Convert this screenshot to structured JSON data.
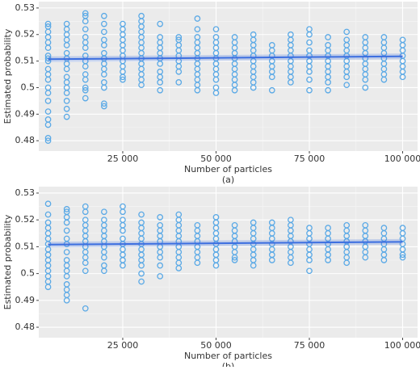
{
  "chart_data": [
    {
      "type": "scatter",
      "caption": "(a)",
      "x_label": "Number of particles",
      "y_label": "Estimated probability",
      "point_color": "#5aa9e6",
      "fit_color": "#3d6fe0",
      "grid": true,
      "background": "#ebebeb",
      "xlim": [
        2500,
        104000
      ],
      "ylim": [
        0.4761,
        0.5324
      ],
      "xticks": [
        {
          "value": 25000,
          "label": "25 000"
        },
        {
          "value": 50000,
          "label": "50 000"
        },
        {
          "value": 75000,
          "label": "75 000"
        },
        {
          "value": 100000,
          "label": "100 000"
        }
      ],
      "yticks": [
        0.48,
        0.49,
        0.5,
        0.51,
        0.52,
        0.53
      ],
      "fit": {
        "x": [
          5000,
          100000
        ],
        "values": [
          0.5107,
          0.5118
        ]
      },
      "groups": [
        {
          "x": 5000,
          "values": [
            0.524,
            0.523,
            0.521,
            0.519,
            0.517,
            0.515,
            0.512,
            0.511,
            0.51,
            0.507,
            0.505,
            0.503,
            0.5,
            0.498,
            0.495,
            0.491,
            0.488,
            0.486,
            0.481,
            0.48
          ]
        },
        {
          "x": 10000,
          "values": [
            0.524,
            0.522,
            0.52,
            0.518,
            0.516,
            0.513,
            0.511,
            0.509,
            0.507,
            0.504,
            0.502,
            0.5,
            0.498,
            0.495,
            0.492,
            0.489
          ]
        },
        {
          "x": 15000,
          "values": [
            0.528,
            0.527,
            0.525,
            0.522,
            0.519,
            0.517,
            0.515,
            0.512,
            0.51,
            0.508,
            0.505,
            0.503,
            0.5,
            0.499,
            0.496
          ]
        },
        {
          "x": 20000,
          "values": [
            0.527,
            0.524,
            0.521,
            0.518,
            0.516,
            0.513,
            0.511,
            0.509,
            0.507,
            0.505,
            0.502,
            0.5,
            0.494,
            0.493
          ]
        },
        {
          "x": 25000,
          "values": [
            0.524,
            0.522,
            0.52,
            0.518,
            0.516,
            0.514,
            0.512,
            0.51,
            0.508,
            0.506,
            0.504,
            0.503
          ]
        },
        {
          "x": 30000,
          "values": [
            0.527,
            0.525,
            0.523,
            0.521,
            0.519,
            0.517,
            0.515,
            0.513,
            0.511,
            0.509,
            0.507,
            0.505,
            0.503,
            0.501
          ]
        },
        {
          "x": 35000,
          "values": [
            0.524,
            0.519,
            0.517,
            0.515,
            0.513,
            0.511,
            0.509,
            0.506,
            0.504,
            0.502,
            0.499
          ]
        },
        {
          "x": 40000,
          "values": [
            0.519,
            0.518,
            0.516,
            0.514,
            0.512,
            0.51,
            0.508,
            0.506,
            0.502
          ]
        },
        {
          "x": 45000,
          "values": [
            0.526,
            0.522,
            0.519,
            0.517,
            0.515,
            0.513,
            0.511,
            0.509,
            0.507,
            0.505,
            0.503,
            0.501,
            0.499
          ]
        },
        {
          "x": 50000,
          "values": [
            0.522,
            0.519,
            0.517,
            0.515,
            0.513,
            0.511,
            0.509,
            0.507,
            0.505,
            0.503,
            0.5,
            0.498
          ]
        },
        {
          "x": 55000,
          "values": [
            0.519,
            0.517,
            0.515,
            0.513,
            0.511,
            0.509,
            0.507,
            0.505,
            0.503,
            0.501,
            0.499
          ]
        },
        {
          "x": 60000,
          "values": [
            0.52,
            0.518,
            0.516,
            0.514,
            0.512,
            0.51,
            0.508,
            0.506,
            0.504,
            0.502,
            0.5
          ]
        },
        {
          "x": 65000,
          "values": [
            0.516,
            0.514,
            0.512,
            0.51,
            0.508,
            0.506,
            0.504,
            0.499
          ]
        },
        {
          "x": 70000,
          "values": [
            0.52,
            0.518,
            0.516,
            0.514,
            0.512,
            0.51,
            0.508,
            0.506,
            0.504,
            0.502
          ]
        },
        {
          "x": 75000,
          "values": [
            0.522,
            0.52,
            0.517,
            0.514,
            0.512,
            0.51,
            0.508,
            0.506,
            0.503,
            0.499
          ]
        },
        {
          "x": 80000,
          "values": [
            0.519,
            0.516,
            0.514,
            0.512,
            0.51,
            0.508,
            0.506,
            0.504,
            0.502,
            0.499
          ]
        },
        {
          "x": 85000,
          "values": [
            0.521,
            0.518,
            0.516,
            0.514,
            0.512,
            0.51,
            0.508,
            0.506,
            0.504,
            0.501
          ]
        },
        {
          "x": 90000,
          "values": [
            0.519,
            0.517,
            0.515,
            0.513,
            0.511,
            0.509,
            0.507,
            0.505,
            0.503,
            0.5
          ]
        },
        {
          "x": 95000,
          "values": [
            0.519,
            0.517,
            0.515,
            0.513,
            0.511,
            0.509,
            0.507,
            0.505,
            0.503
          ]
        },
        {
          "x": 100000,
          "values": [
            0.518,
            0.516,
            0.514,
            0.512,
            0.51,
            0.508,
            0.506,
            0.504
          ]
        }
      ]
    },
    {
      "type": "scatter",
      "caption": "(b)",
      "x_label": "Number of particles",
      "y_label": "Estimated probability",
      "point_color": "#5aa9e6",
      "fit_color": "#3d6fe0",
      "grid": true,
      "background": "#ebebeb",
      "xlim": [
        2500,
        104000
      ],
      "ylim": [
        0.4761,
        0.5324
      ],
      "xticks": [
        {
          "value": 25000,
          "label": "25 000"
        },
        {
          "value": 50000,
          "label": "50 000"
        },
        {
          "value": 75000,
          "label": "75 000"
        },
        {
          "value": 100000,
          "label": "100 000"
        }
      ],
      "yticks": [
        0.48,
        0.49,
        0.5,
        0.51,
        0.52,
        0.53
      ],
      "fit": {
        "x": [
          5000,
          100000
        ],
        "values": [
          0.5108,
          0.5118
        ]
      },
      "groups": [
        {
          "x": 5000,
          "values": [
            0.526,
            0.522,
            0.519,
            0.517,
            0.515,
            0.513,
            0.511,
            0.509,
            0.507,
            0.505,
            0.503,
            0.501,
            0.499,
            0.497,
            0.495
          ]
        },
        {
          "x": 10000,
          "values": [
            0.524,
            0.523,
            0.521,
            0.519,
            0.516,
            0.513,
            0.511,
            0.508,
            0.505,
            0.503,
            0.501,
            0.499,
            0.496,
            0.494,
            0.492,
            0.49
          ]
        },
        {
          "x": 15000,
          "values": [
            0.525,
            0.523,
            0.52,
            0.518,
            0.516,
            0.514,
            0.512,
            0.51,
            0.508,
            0.506,
            0.504,
            0.501,
            0.487
          ]
        },
        {
          "x": 20000,
          "values": [
            0.523,
            0.52,
            0.518,
            0.516,
            0.514,
            0.512,
            0.51,
            0.508,
            0.506,
            0.503,
            0.501
          ]
        },
        {
          "x": 25000,
          "values": [
            0.525,
            0.523,
            0.52,
            0.518,
            0.516,
            0.513,
            0.511,
            0.509,
            0.507,
            0.505,
            0.503
          ]
        },
        {
          "x": 30000,
          "values": [
            0.522,
            0.519,
            0.517,
            0.515,
            0.513,
            0.511,
            0.509,
            0.507,
            0.505,
            0.503,
            0.5,
            0.497
          ]
        },
        {
          "x": 35000,
          "values": [
            0.521,
            0.518,
            0.516,
            0.514,
            0.512,
            0.51,
            0.508,
            0.506,
            0.503,
            0.499
          ]
        },
        {
          "x": 40000,
          "values": [
            0.522,
            0.52,
            0.518,
            0.516,
            0.514,
            0.512,
            0.51,
            0.508,
            0.506,
            0.504,
            0.502
          ]
        },
        {
          "x": 45000,
          "values": [
            0.518,
            0.516,
            0.514,
            0.512,
            0.51,
            0.508,
            0.506,
            0.504
          ]
        },
        {
          "x": 50000,
          "values": [
            0.521,
            0.519,
            0.517,
            0.515,
            0.513,
            0.511,
            0.509,
            0.507,
            0.505,
            0.503
          ]
        },
        {
          "x": 55000,
          "values": [
            0.518,
            0.516,
            0.514,
            0.512,
            0.51,
            0.508,
            0.506,
            0.505
          ]
        },
        {
          "x": 60000,
          "values": [
            0.519,
            0.517,
            0.515,
            0.513,
            0.511,
            0.509,
            0.507,
            0.505,
            0.503
          ]
        },
        {
          "x": 65000,
          "values": [
            0.519,
            0.517,
            0.515,
            0.513,
            0.511,
            0.509,
            0.507,
            0.505
          ]
        },
        {
          "x": 70000,
          "values": [
            0.52,
            0.518,
            0.516,
            0.514,
            0.512,
            0.51,
            0.508,
            0.506,
            0.504
          ]
        },
        {
          "x": 75000,
          "values": [
            0.517,
            0.515,
            0.513,
            0.511,
            0.509,
            0.507,
            0.505,
            0.501
          ]
        },
        {
          "x": 80000,
          "values": [
            0.517,
            0.515,
            0.513,
            0.511,
            0.509,
            0.507,
            0.505
          ]
        },
        {
          "x": 85000,
          "values": [
            0.518,
            0.516,
            0.514,
            0.512,
            0.51,
            0.508,
            0.506,
            0.504
          ]
        },
        {
          "x": 90000,
          "values": [
            0.518,
            0.516,
            0.514,
            0.512,
            0.51,
            0.508,
            0.506
          ]
        },
        {
          "x": 95000,
          "values": [
            0.517,
            0.515,
            0.513,
            0.511,
            0.509,
            0.507,
            0.505
          ]
        },
        {
          "x": 100000,
          "values": [
            0.517,
            0.515,
            0.513,
            0.511,
            0.509,
            0.507,
            0.506
          ]
        }
      ]
    }
  ]
}
